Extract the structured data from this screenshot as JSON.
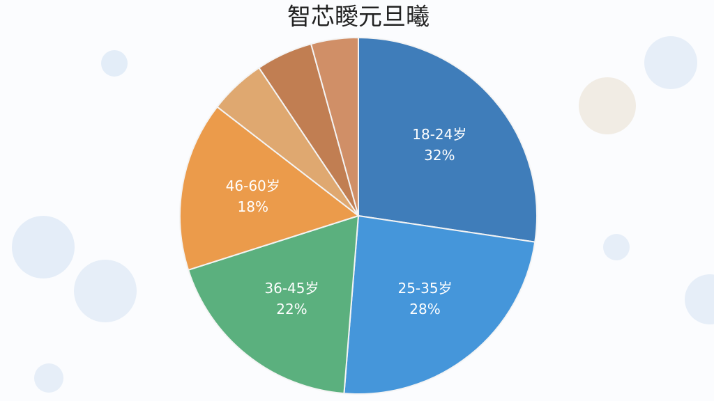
{
  "chart_data": {
    "type": "pie",
    "title": "智芯瞹元旦曦",
    "categories": [
      "18-24岁",
      "25-35岁",
      "36-45岁",
      "46-60岁",
      null,
      null,
      null
    ],
    "values": [
      32,
      28,
      22,
      18,
      6,
      6,
      5
    ],
    "value_labels": [
      "32%",
      "28%",
      "22%",
      "18%",
      null,
      null,
      null
    ],
    "colors": [
      "#3f7dba",
      "#4596da",
      "#5bb07e",
      "#eb9b4b",
      "#dfa870",
      "#c17e52",
      "#d08f67"
    ]
  }
}
